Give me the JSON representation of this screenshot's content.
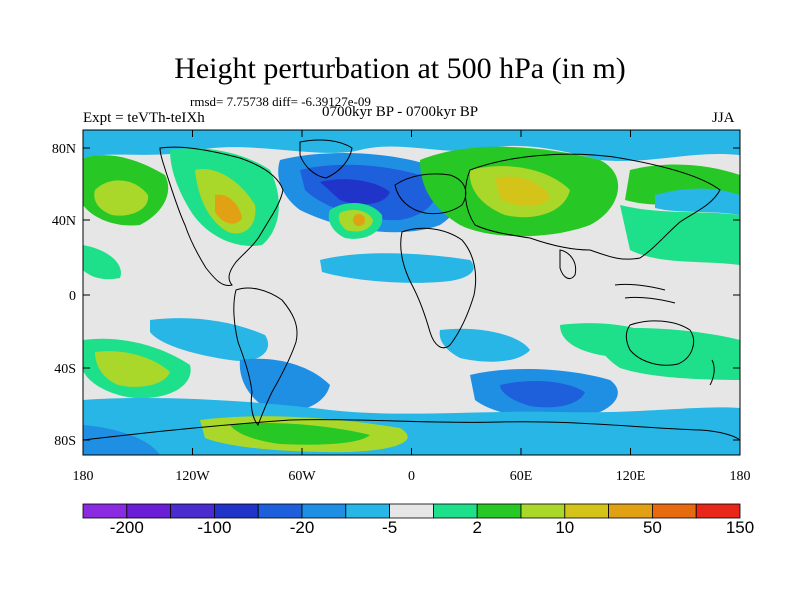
{
  "title": "Height perturbation at 500 hPa (in m)",
  "subtitle_stats": "rmsd= 7.75738  diff= -6.39127e-09",
  "experiment": "Expt = teVTh-teIXh",
  "period": "0700kyr BP - 0700kyr BP",
  "season": "JJA",
  "lat_ticks": [
    "80N",
    "40N",
    "0",
    "40S",
    "80S"
  ],
  "lon_ticks": [
    "180",
    "120W",
    "60W",
    "0",
    "60E",
    "120E",
    "180"
  ],
  "colorbar": {
    "colors": [
      "#8a2be2",
      "#6a1fd6",
      "#4a2ccf",
      "#2034c9",
      "#1e5fdc",
      "#1f8fe4",
      "#27b6e5",
      "#e6e6e6",
      "#1ee08a",
      "#27c826",
      "#a9d82a",
      "#d4c419",
      "#e2a014",
      "#e66a10",
      "#e8261a"
    ],
    "labels": [
      "-200",
      "-100",
      "-20",
      "-5",
      "2",
      "10",
      "50",
      "150"
    ]
  },
  "field_colors": {
    "background": "#e6e6e6",
    "cyan": "#27b6e5",
    "lightblue": "#1f8fe4",
    "blue": "#1e5fdc",
    "darkblue": "#2034c9",
    "green_cyan": "#1ee08a",
    "green": "#27c826",
    "yellowgreen": "#a9d82a",
    "yellow": "#d4c419",
    "orange": "#e2a014"
  }
}
